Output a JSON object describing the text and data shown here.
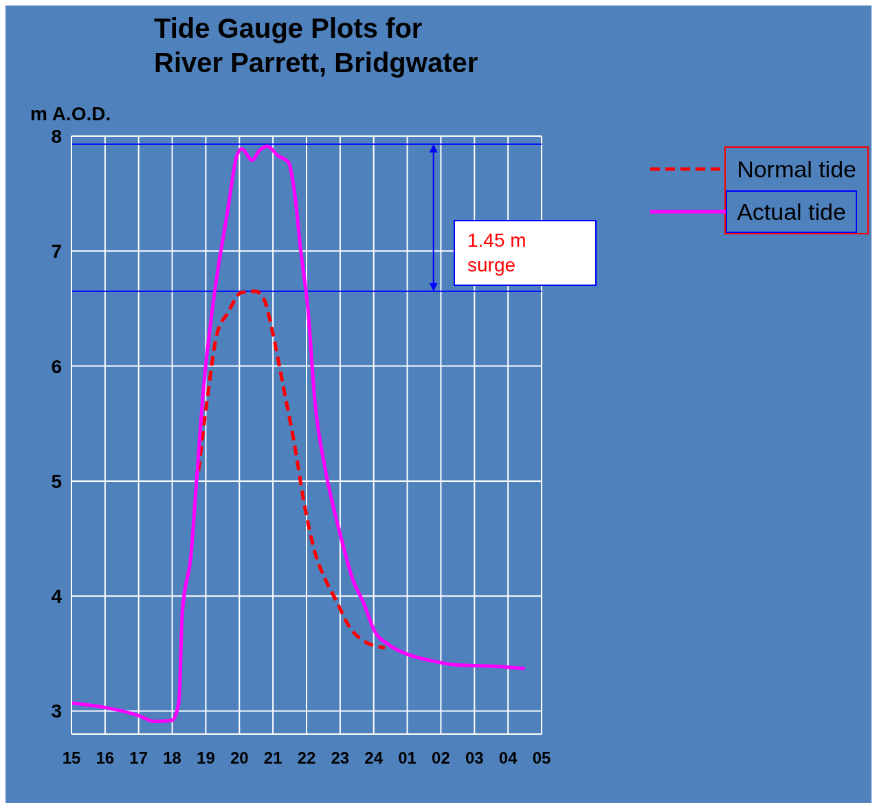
{
  "chart_data": {
    "type": "line",
    "title": "Tide Gauge Plots for\nRiver Parrett, Bridgwater",
    "ylabel": "m A.O.D.",
    "xlim": [
      "--01-01T15:00",
      "--01-02T05:00"
    ],
    "xticks": [
      {
        "value": "--01-01T15:00",
        "label": "15"
      },
      {
        "value": "--01-01T16:00",
        "label": "16"
      },
      {
        "value": "--01-01T17:00",
        "label": "17"
      },
      {
        "value": "--01-01T18:00",
        "label": "18"
      },
      {
        "value": "--01-01T19:00",
        "label": "19"
      },
      {
        "value": "--01-01T20:00",
        "label": "20"
      },
      {
        "value": "--01-01T21:00",
        "label": "21"
      },
      {
        "value": "--01-01T22:00",
        "label": "22"
      },
      {
        "value": "--01-01T23:00",
        "label": "23"
      },
      {
        "value": "--01-02T00:00",
        "label": "24"
      },
      {
        "value": "--01-02T01:00",
        "label": "01"
      },
      {
        "value": "--01-02T02:00",
        "label": "02"
      },
      {
        "value": "--01-02T03:00",
        "label": "03"
      },
      {
        "value": "--01-02T04:00",
        "label": "04"
      },
      {
        "value": "--01-02T05:00",
        "label": "05"
      }
    ],
    "ylim": [
      2.8,
      8
    ],
    "yticks": [
      3,
      4,
      5,
      6,
      7,
      8
    ],
    "grid": true,
    "legend": "top right",
    "marker": "none",
    "series": [
      {
        "name": "Normal tide",
        "color": "#ff0000",
        "line_style": "dashed",
        "x": [
          "--01-01T18:47",
          "--01-01T19:02",
          "--01-01T19:20",
          "--01-01T19:39",
          "--01-01T20:04",
          "--01-01T20:29",
          "--01-01T20:44",
          "--01-01T21:00",
          "--01-01T21:19",
          "--01-01T21:38",
          "--01-01T21:56",
          "--01-01T22:15",
          "--01-01T22:34",
          "--01-01T22:52",
          "--01-01T23:17",
          "--01-01T23:42",
          "--01-02T00:20"
        ],
        "values": [
          5.09,
          5.69,
          6.28,
          6.46,
          6.64,
          6.65,
          6.58,
          6.28,
          5.81,
          5.33,
          4.8,
          4.38,
          4.14,
          3.97,
          3.73,
          3.61,
          3.55
        ]
      },
      {
        "name": "Actual tide",
        "color": "#ff00ff",
        "line_style": "solid",
        "x": [
          "--01-01T15:00",
          "--01-01T17:00",
          "--01-01T17:28",
          "--01-01T18:00",
          "--01-01T18:12",
          "--01-01T18:18",
          "--01-01T18:34",
          "--01-01T18:43",
          "--01-01T18:56",
          "--01-01T19:14",
          "--01-01T19:39",
          "--01-01T19:55",
          "--01-01T20:04",
          "--01-01T20:23",
          "--01-01T20:35",
          "--01-01T20:50",
          "--01-01T21:09",
          "--01-01T21:28",
          "--01-01T21:38",
          "--01-01T21:50",
          "--01-01T22:02",
          "--01-01T22:15",
          "--01-01T22:34",
          "--01-01T22:59",
          "--01-01T23:23",
          "--01-01T23:42",
          "--01-02T00:01",
          "--01-02T00:26",
          "--01-02T00:57",
          "--01-02T01:41",
          "--01-02T02:30",
          "--01-02T03:33",
          "--01-02T04:30"
        ],
        "values": [
          3.07,
          2.96,
          2.91,
          2.92,
          3.08,
          3.85,
          4.38,
          4.97,
          5.81,
          6.58,
          7.35,
          7.82,
          7.89,
          7.79,
          7.87,
          7.91,
          7.83,
          7.77,
          7.53,
          6.99,
          6.52,
          5.69,
          5.09,
          4.56,
          4.14,
          3.94,
          3.7,
          3.58,
          3.5,
          3.44,
          3.4,
          3.39,
          3.37
        ]
      }
    ],
    "ref_lines": [
      {
        "axis": "y",
        "value": 7.93,
        "color": "#0000ff"
      },
      {
        "axis": "y",
        "value": 6.65,
        "color": "#0000ff"
      }
    ],
    "annotations": [
      "1.45 m\nsurge"
    ]
  }
}
